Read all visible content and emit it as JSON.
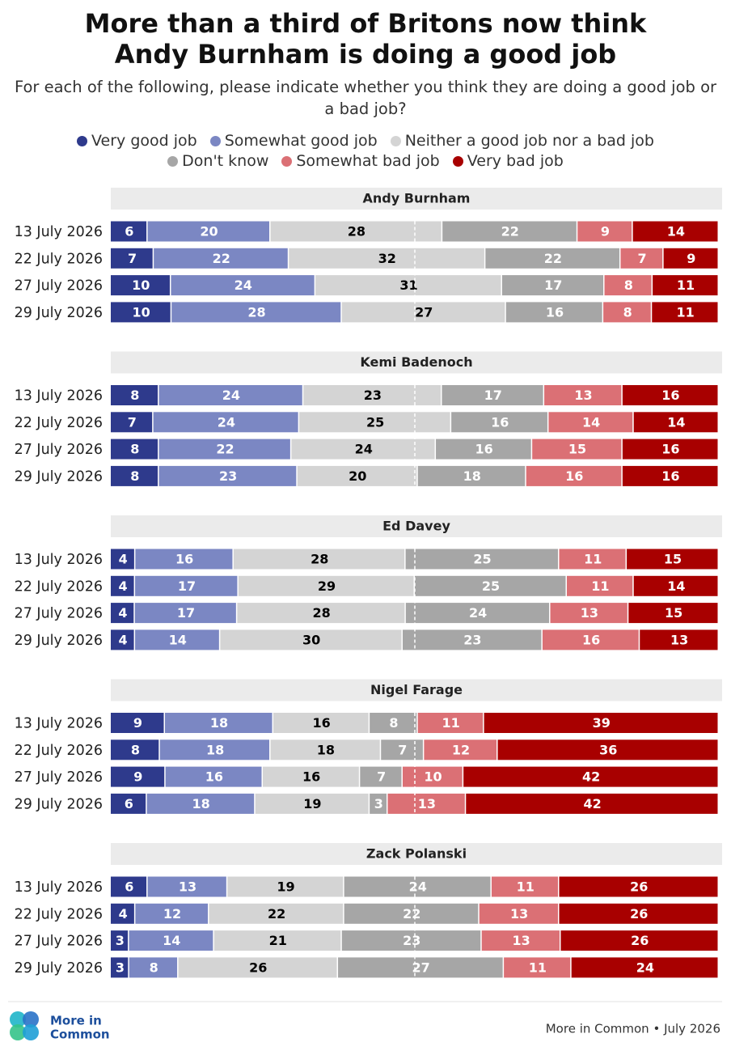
{
  "title": "More than a third of Britons now think Andy Burnham is doing a good job",
  "subtitle": "For each of the following, please indicate whether you think they are doing a good job or a bad job?",
  "chart_data": {
    "type": "bar",
    "stacked": true,
    "orientation": "horizontal",
    "series": [
      {
        "name": "Very good job",
        "color": "#2e3a8c",
        "label_color": "#ffffff",
        "values": [
          [
            6,
            7,
            10,
            10
          ],
          [
            8,
            7,
            8,
            8
          ],
          [
            4,
            4,
            4,
            4
          ],
          [
            9,
            8,
            9,
            6
          ],
          [
            6,
            4,
            3,
            3
          ]
        ]
      },
      {
        "name": "Somewhat good job",
        "color": "#7b87c3",
        "label_color": "#ffffff",
        "values": [
          [
            20,
            22,
            24,
            28
          ],
          [
            24,
            24,
            22,
            23
          ],
          [
            16,
            17,
            17,
            14
          ],
          [
            18,
            18,
            16,
            18
          ],
          [
            13,
            12,
            14,
            8
          ]
        ]
      },
      {
        "name": "Neither a good job nor a bad job",
        "color": "#d4d4d4",
        "label_color": "#000000",
        "values": [
          [
            28,
            32,
            31,
            27
          ],
          [
            23,
            25,
            24,
            20
          ],
          [
            28,
            29,
            28,
            30
          ],
          [
            16,
            18,
            16,
            19
          ],
          [
            19,
            22,
            21,
            26
          ]
        ]
      },
      {
        "name": "Don't know",
        "color": "#a6a6a6",
        "label_color": "#ffffff",
        "values": [
          [
            22,
            22,
            17,
            16
          ],
          [
            17,
            16,
            16,
            18
          ],
          [
            25,
            25,
            24,
            23
          ],
          [
            8,
            7,
            7,
            3
          ],
          [
            24,
            22,
            23,
            27
          ]
        ]
      },
      {
        "name": "Somewhat bad job",
        "color": "#db7075",
        "label_color": "#ffffff",
        "values": [
          [
            9,
            7,
            8,
            8
          ],
          [
            13,
            14,
            15,
            16
          ],
          [
            11,
            11,
            13,
            16
          ],
          [
            11,
            12,
            10,
            13
          ],
          [
            11,
            13,
            13,
            11
          ]
        ]
      },
      {
        "name": "Very bad job",
        "color": "#a80000",
        "label_color": "#ffffff",
        "values": [
          [
            14,
            9,
            11,
            11
          ],
          [
            16,
            14,
            16,
            16
          ],
          [
            15,
            14,
            15,
            13
          ],
          [
            39,
            36,
            42,
            42
          ],
          [
            26,
            26,
            26,
            24
          ]
        ]
      }
    ],
    "panels": [
      {
        "title": "Andy Burnham",
        "categories": [
          "13 July 2026",
          "22 July 2026",
          "27 July 2026",
          "29 July 2026"
        ]
      },
      {
        "title": "Kemi Badenoch",
        "categories": [
          "13 July 2026",
          "22 July 2026",
          "27 July 2026",
          "29 July 2026"
        ]
      },
      {
        "title": "Ed Davey",
        "categories": [
          "13 July 2026",
          "22 July 2026",
          "27 July 2026",
          "29 July 2026"
        ]
      },
      {
        "title": "Nigel Farage",
        "categories": [
          "13 July 2026",
          "22 July 2026",
          "27 July 2026",
          "29 July 2026"
        ]
      },
      {
        "title": "Zack Polanski",
        "categories": [
          "13 July 2026",
          "22 July 2026",
          "27 July 2026",
          "29 July 2026"
        ]
      }
    ]
  },
  "logo": [
    "More in",
    "Common"
  ],
  "source": "More in Common • July 2026"
}
